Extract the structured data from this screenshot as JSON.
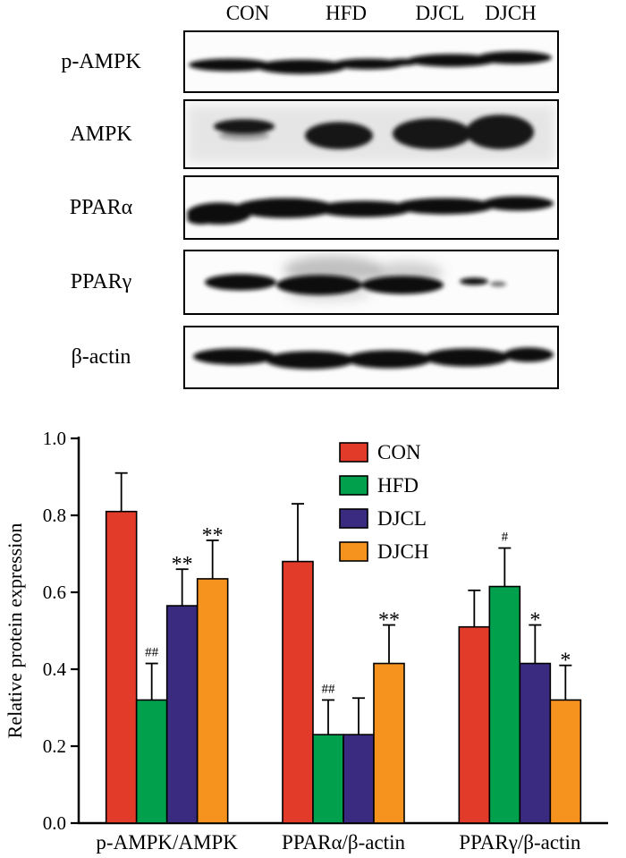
{
  "blots": {
    "lanes": [
      "CON",
      "HFD",
      "DJCL",
      "DJCH"
    ],
    "rows": [
      {
        "label": "p-AMPK"
      },
      {
        "label": "AMPK"
      },
      {
        "label": "PPARα"
      },
      {
        "label": "PPARγ"
      },
      {
        "label": "β-actin"
      }
    ]
  },
  "chart_data": {
    "type": "bar",
    "title": "",
    "xlabel": "",
    "ylabel": "Relative protein expression",
    "ylim": [
      0.0,
      1.0
    ],
    "yticks": [
      0.0,
      0.2,
      0.4,
      0.6,
      0.8,
      1.0
    ],
    "grid": false,
    "legend_position": "top-center-inside",
    "categories": [
      "p-AMPK/AMPK",
      "PPARα/β-actin",
      "PPARγ/β-actin"
    ],
    "series": [
      {
        "name": "CON",
        "color": "#e23b2a",
        "values": [
          0.81,
          0.68,
          0.51
        ],
        "errors": [
          0.1,
          0.15,
          0.095
        ],
        "annotations": [
          "",
          "",
          ""
        ]
      },
      {
        "name": "HFD",
        "color": "#00a04c",
        "values": [
          0.32,
          0.23,
          0.615
        ],
        "errors": [
          0.095,
          0.09,
          0.1
        ],
        "annotations": [
          "##",
          "##",
          "#"
        ]
      },
      {
        "name": "DJCL",
        "color": "#3a2b80",
        "values": [
          0.565,
          0.23,
          0.415
        ],
        "errors": [
          0.095,
          0.095,
          0.1
        ],
        "annotations": [
          "**",
          "",
          "*"
        ]
      },
      {
        "name": "DJCH",
        "color": "#f6921e",
        "values": [
          0.635,
          0.415,
          0.32
        ],
        "errors": [
          0.1,
          0.1,
          0.09
        ],
        "annotations": [
          "**",
          "**",
          "*"
        ]
      }
    ]
  }
}
